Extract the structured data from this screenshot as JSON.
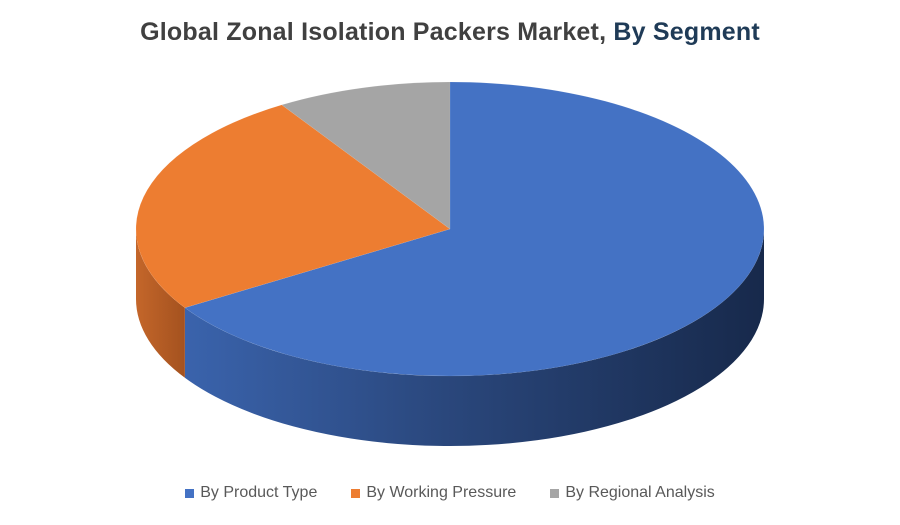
{
  "chart_data": {
    "type": "pie",
    "title_main": "Global Zonal Isolation Packers Market",
    "title_sep": ", ",
    "title_emph": "By Segment",
    "categories": [
      "By Product Type",
      "By Working Pressure",
      "By Regional Analysis"
    ],
    "values": [
      66,
      25,
      9
    ],
    "colors": [
      "#4472c4",
      "#ed7d31",
      "#a5a5a5"
    ],
    "legend_position": "bottom"
  }
}
